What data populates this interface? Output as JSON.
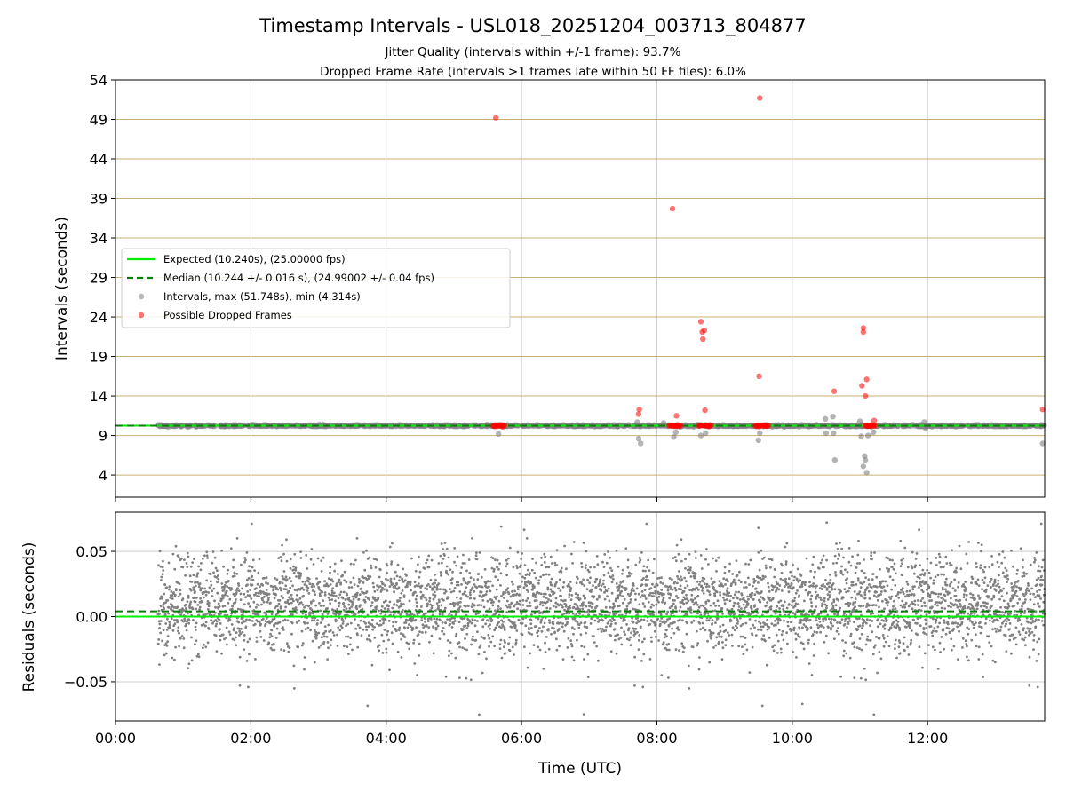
{
  "chart_data": [
    {
      "type": "scatter",
      "title": "Timestamp Intervals - USL018_20251204_003713_804877",
      "subtitle_lines": [
        "Jitter Quality (intervals within +/-1 frame): 93.7%",
        "Dropped Frame Rate (intervals >1 frames late within 50 FF files): 6.0%"
      ],
      "xlabel": "",
      "ylabel": "Intervals (seconds)",
      "xlim": [
        0,
        13.73
      ],
      "ylim": [
        1.2,
        54
      ],
      "y_ticks": [
        4,
        9,
        14,
        19,
        24,
        29,
        34,
        39,
        44,
        49,
        54
      ],
      "x_ticks": [
        0,
        2,
        4,
        6,
        8,
        10,
        12
      ],
      "grid": true,
      "legend": "center-left",
      "legend_entries": [
        "Expected (10.240s), (25.00000 fps)",
        "Median (10.244 +/- 0.016 s), (24.99002 +/- 0.04 fps)",
        "Intervals, max (51.748s), min (4.314s)",
        "Possible Dropped Frames"
      ],
      "expected_interval": 10.24,
      "median_interval": 10.244,
      "intervals_range": [
        0.63,
        13.73
      ],
      "outlier_intervals": [
        {
          "x": 5.66,
          "y": 9.2
        },
        {
          "x": 7.73,
          "y": 8.6
        },
        {
          "x": 7.76,
          "y": 8.0
        },
        {
          "x": 8.25,
          "y": 8.8
        },
        {
          "x": 8.28,
          "y": 9.4
        },
        {
          "x": 8.65,
          "y": 9.0
        },
        {
          "x": 8.72,
          "y": 9.3
        },
        {
          "x": 9.5,
          "y": 8.4
        },
        {
          "x": 9.52,
          "y": 9.3
        },
        {
          "x": 10.49,
          "y": 11.1
        },
        {
          "x": 10.5,
          "y": 9.3
        },
        {
          "x": 10.6,
          "y": 11.4
        },
        {
          "x": 10.61,
          "y": 9.3
        },
        {
          "x": 10.63,
          "y": 5.9
        },
        {
          "x": 11.0,
          "y": 10.8
        },
        {
          "x": 11.02,
          "y": 8.9
        },
        {
          "x": 11.05,
          "y": 5.1
        },
        {
          "x": 11.07,
          "y": 6.4
        },
        {
          "x": 11.08,
          "y": 5.9
        },
        {
          "x": 11.1,
          "y": 4.3
        },
        {
          "x": 11.12,
          "y": 9.0
        },
        {
          "x": 11.2,
          "y": 9.4
        },
        {
          "x": 11.95,
          "y": 10.7
        },
        {
          "x": 11.97,
          "y": 9.9
        },
        {
          "x": 13.7,
          "y": 8.0
        },
        {
          "x": 7.71,
          "y": 10.7
        },
        {
          "x": 8.1,
          "y": 10.6
        }
      ],
      "dropped_frames": [
        {
          "x": 5.62,
          "y": 49.2
        },
        {
          "x": 7.74,
          "y": 12.3
        },
        {
          "x": 7.73,
          "y": 11.7
        },
        {
          "x": 8.23,
          "y": 37.7
        },
        {
          "x": 8.29,
          "y": 11.5
        },
        {
          "x": 8.65,
          "y": 23.4
        },
        {
          "x": 8.67,
          "y": 22.1
        },
        {
          "x": 8.7,
          "y": 22.3
        },
        {
          "x": 8.68,
          "y": 21.2
        },
        {
          "x": 8.71,
          "y": 12.2
        },
        {
          "x": 9.52,
          "y": 51.7
        },
        {
          "x": 9.51,
          "y": 16.5
        },
        {
          "x": 10.62,
          "y": 14.6
        },
        {
          "x": 11.03,
          "y": 15.3
        },
        {
          "x": 11.05,
          "y": 22.6
        },
        {
          "x": 11.05,
          "y": 22.1
        },
        {
          "x": 11.08,
          "y": 14.0
        },
        {
          "x": 11.1,
          "y": 16.1
        },
        {
          "x": 11.21,
          "y": 10.9
        },
        {
          "x": 13.7,
          "y": 12.3
        }
      ],
      "dropped_clusters": [
        [
          5.58,
          5.75
        ],
        [
          8.18,
          8.35
        ],
        [
          8.62,
          8.8
        ],
        [
          9.45,
          9.65
        ],
        [
          11.08,
          11.22
        ]
      ]
    },
    {
      "type": "scatter",
      "xlabel": "Time (UTC)",
      "ylabel": "Residuals (seconds)",
      "xlim": [
        0,
        13.73
      ],
      "ylim": [
        -0.08,
        0.08
      ],
      "y_ticks": [
        -0.05,
        0.0,
        0.05
      ],
      "y_tick_labels": [
        "−0.05",
        "0.00",
        "0.05"
      ],
      "x_tick_labels": [
        "00:00",
        "02:00",
        "04:00",
        "06:00",
        "08:00",
        "10:00",
        "12:00"
      ],
      "grid": true,
      "expected_residual": 0.0,
      "median_residual": 0.004,
      "residual_points_count": 4600,
      "residual_extremes": [
        {
          "x": 5.7,
          "y": 0.069
        },
        {
          "x": 10.51,
          "y": 0.072
        },
        {
          "x": 9.5,
          "y": 0.068
        },
        {
          "x": 6.92,
          "y": -0.075
        },
        {
          "x": 10.15,
          "y": -0.067
        },
        {
          "x": 8.07,
          "y": -0.045
        },
        {
          "x": 8.17,
          "y": -0.047
        },
        {
          "x": 4.05,
          "y": -0.041
        },
        {
          "x": 1.8,
          "y": 0.06
        },
        {
          "x": 3.57,
          "y": 0.06
        },
        {
          "x": 5.27,
          "y": 0.06
        },
        {
          "x": 6.08,
          "y": 0.06
        },
        {
          "x": 9.37,
          "y": -0.043
        },
        {
          "x": 10.98,
          "y": 0.058
        },
        {
          "x": 11.07,
          "y": -0.04
        },
        {
          "x": 11.6,
          "y": 0.058
        },
        {
          "x": 13.0,
          "y": -0.035
        },
        {
          "x": 12.8,
          "y": 0.055
        }
      ]
    }
  ],
  "colors": {
    "expected": "#00ee00",
    "median": "#008000",
    "intervals": "#808080",
    "dropped": "#ff0000",
    "hgrid_top": "#c8b070",
    "grid": "#cccccc"
  }
}
